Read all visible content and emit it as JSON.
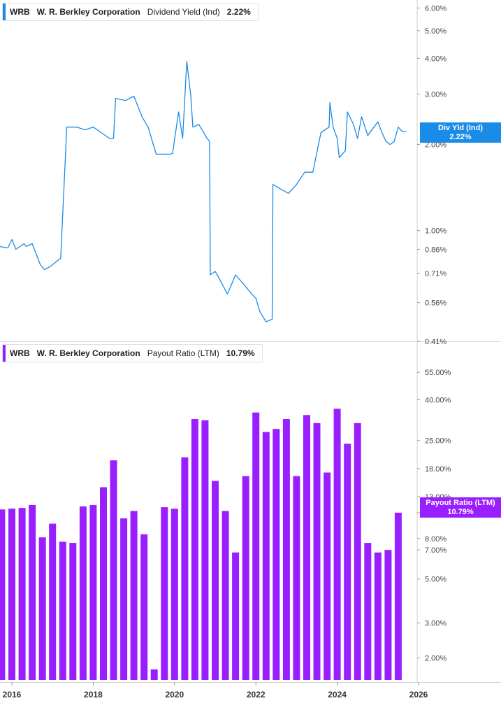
{
  "panels": [
    {
      "ticker": "WRB",
      "company": "W. R. Berkley Corporation",
      "metric": "Dividend Yield (Ind)",
      "value": "2.22%",
      "tag_label": "Div Yld (Ind)",
      "tag_value": "2.22%",
      "color": "#1a8be6"
    },
    {
      "ticker": "WRB",
      "company": "W. R. Berkley Corporation",
      "metric": "Payout Ratio (LTM)",
      "value": "10.79%",
      "tag_label": "Payout Ratio (LTM)",
      "tag_value": "10.79%",
      "color": "#9a1fff"
    }
  ],
  "x_ticks": [
    "2016",
    "2018",
    "2020",
    "2022",
    "2024",
    "2026"
  ],
  "chart_data": [
    {
      "type": "line",
      "title": "WRB W. R. Berkley Corporation Dividend Yield (Ind) 2.22%",
      "y_scale": "log",
      "ylim": [
        0.41,
        6.4
      ],
      "y_ticks": [
        "6.00%",
        "5.00%",
        "4.00%",
        "3.00%",
        "2.00%",
        "1.00%",
        "0.86%",
        "0.71%",
        "0.56%",
        "0.41%"
      ],
      "series": [
        {
          "name": "Div Yld (Ind)",
          "x": [
            2015.7,
            2015.9,
            2016.0,
            2016.1,
            2016.3,
            2016.35,
            2016.5,
            2016.7,
            2016.8,
            2016.95,
            2017.1,
            2017.2,
            2017.35,
            2017.37,
            2017.6,
            2017.8,
            2018.0,
            2018.2,
            2018.4,
            2018.5,
            2018.55,
            2018.8,
            2019.0,
            2019.2,
            2019.35,
            2019.5,
            2019.55,
            2019.9,
            2019.95,
            2020.1,
            2020.2,
            2020.3,
            2020.4,
            2020.45,
            2020.6,
            2020.8,
            2020.86,
            2020.88,
            2021.0,
            2021.1,
            2021.3,
            2021.5,
            2021.7,
            2021.9,
            2022.0,
            2022.1,
            2022.25,
            2022.4,
            2022.42,
            2022.6,
            2022.8,
            2023.0,
            2023.2,
            2023.4,
            2023.6,
            2023.8,
            2023.82,
            2023.9,
            2024.0,
            2024.05,
            2024.2,
            2024.25,
            2024.4,
            2024.5,
            2024.6,
            2024.75,
            2025.0,
            2025.1,
            2025.2,
            2025.3,
            2025.4,
            2025.5,
            2025.6,
            2025.7
          ],
          "y": [
            0.88,
            0.87,
            0.93,
            0.86,
            0.9,
            0.88,
            0.9,
            0.76,
            0.73,
            0.75,
            0.78,
            0.8,
            2.3,
            2.3,
            2.3,
            2.25,
            2.3,
            2.2,
            2.1,
            2.1,
            2.9,
            2.85,
            2.95,
            2.5,
            2.3,
            1.95,
            1.85,
            1.85,
            1.86,
            2.6,
            2.1,
            3.9,
            2.95,
            2.3,
            2.35,
            2.1,
            2.05,
            0.7,
            0.72,
            0.68,
            0.6,
            0.7,
            0.65,
            0.6,
            0.58,
            0.52,
            0.48,
            0.49,
            1.45,
            1.4,
            1.35,
            1.45,
            1.6,
            1.6,
            2.2,
            2.3,
            2.8,
            2.3,
            2.1,
            1.8,
            1.9,
            2.6,
            2.35,
            2.1,
            2.5,
            2.15,
            2.4,
            2.2,
            2.05,
            2.0,
            2.05,
            2.3,
            2.22,
            2.22
          ]
        }
      ]
    },
    {
      "type": "bar",
      "title": "WRB W. R. Berkley Corporation Payout Ratio (LTM) 10.79%",
      "y_scale": "log",
      "ylim": [
        1.55,
        75
      ],
      "y_ticks": [
        "55.00%",
        "40.00%",
        "25.00%",
        "18.00%",
        "13.00%",
        "10.79%",
        "8.00%",
        "7.00%",
        "5.00%",
        "3.00%",
        "2.00%"
      ],
      "series": [
        {
          "name": "Payout Ratio (LTM)",
          "x": [
            2015.75,
            2016.0,
            2016.25,
            2016.5,
            2016.75,
            2017.0,
            2017.25,
            2017.5,
            2017.75,
            2018.0,
            2018.25,
            2018.5,
            2018.75,
            2019.0,
            2019.25,
            2019.5,
            2019.75,
            2020.0,
            2020.25,
            2020.5,
            2020.75,
            2021.0,
            2021.25,
            2021.5,
            2021.75,
            2022.0,
            2022.25,
            2022.5,
            2022.75,
            2023.0,
            2023.25,
            2023.5,
            2023.75,
            2024.0,
            2024.25,
            2024.5,
            2024.75,
            2025.0,
            2025.25,
            2025.5
          ],
          "values": [
            11.2,
            11.3,
            11.4,
            11.8,
            8.1,
            9.5,
            7.7,
            7.6,
            11.6,
            11.8,
            14.5,
            19.8,
            10.1,
            11.0,
            8.4,
            1.75,
            11.5,
            11.3,
            20.5,
            32.0,
            31.5,
            15.6,
            11.0,
            6.8,
            16.5,
            34.5,
            27.5,
            28.5,
            32.0,
            16.5,
            33.5,
            30.5,
            17.2,
            36.0,
            24.0,
            30.5,
            7.6,
            6.8,
            7.0,
            10.79
          ]
        }
      ]
    }
  ]
}
